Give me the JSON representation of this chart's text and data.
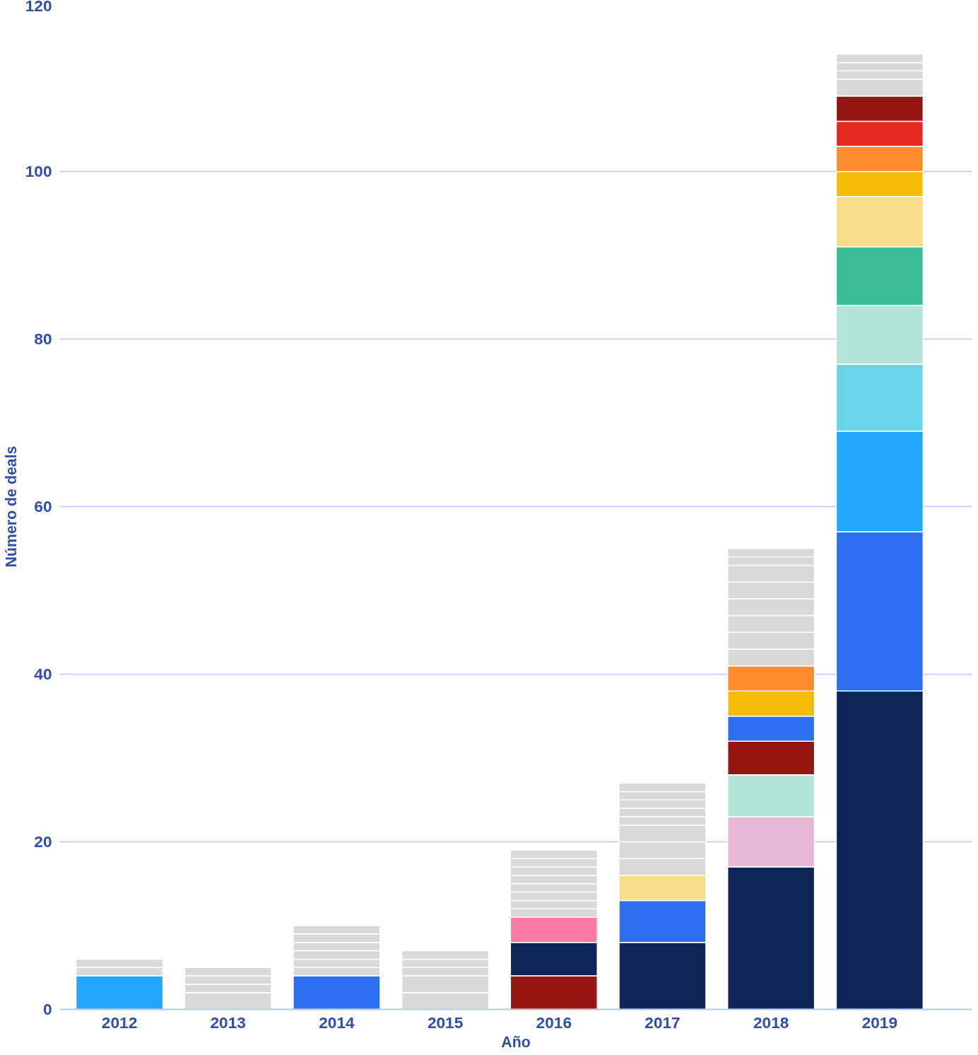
{
  "chart_data": {
    "type": "bar",
    "stacked": true,
    "xlabel": "Año",
    "ylabel": "Número de deals",
    "categories": [
      "2012",
      "2013",
      "2014",
      "2015",
      "2016",
      "2017",
      "2018",
      "2019"
    ],
    "ylim": [
      0,
      120
    ],
    "yticks": [
      0,
      20,
      40,
      60,
      80,
      100,
      120
    ],
    "grid": "y",
    "series": [
      {
        "values": [
          4,
          2,
          4,
          2,
          4,
          8,
          17,
          38
        ],
        "colors": [
          "#22a7fe",
          "#d9d9d9",
          "#2c6ff0",
          "#d9d9d9",
          "#951511",
          "#0d2557",
          "#0d2557",
          "#0d2557"
        ]
      },
      {
        "values": [
          1,
          1,
          1,
          2,
          4,
          5,
          6,
          19
        ],
        "colors": [
          "#d9d9d9",
          "#d9d9d9",
          "#d9d9d9",
          "#d9d9d9",
          "#0d2557",
          "#2c6ff0",
          "#e7b8d5",
          "#2c6ff0"
        ]
      },
      {
        "values": [
          1,
          1,
          1,
          1,
          3,
          3,
          5,
          12
        ],
        "colors": [
          "#d9d9d9",
          "#d9d9d9",
          "#d9d9d9",
          "#d9d9d9",
          "#fd7aa3",
          "#f8dc87",
          "#b2e5d5",
          "#22a7fe"
        ]
      },
      {
        "values": [
          null,
          1,
          1,
          1,
          1,
          2,
          4,
          8
        ],
        "colors": [
          null,
          "#d9d9d9",
          "#d9d9d9",
          "#d9d9d9",
          "#d9d9d9",
          "#d9d9d9",
          "#951511",
          "#68d5e8"
        ]
      },
      {
        "values": [
          null,
          null,
          1,
          1,
          1,
          2,
          3,
          7
        ],
        "colors": [
          null,
          null,
          "#d9d9d9",
          "#d9d9d9",
          "#d9d9d9",
          "#d9d9d9",
          "#2c6ff0",
          "#b2e5d5"
        ]
      },
      {
        "values": [
          null,
          null,
          1,
          null,
          1,
          2,
          3,
          7
        ],
        "colors": [
          null,
          null,
          "#d9d9d9",
          null,
          "#d9d9d9",
          "#d9d9d9",
          "#f5bd06",
          "#3bbd97"
        ]
      },
      {
        "values": [
          null,
          null,
          1,
          null,
          1,
          1,
          3,
          6
        ],
        "colors": [
          null,
          null,
          "#d9d9d9",
          null,
          "#d9d9d9",
          "#d9d9d9",
          "#fd8b2b",
          "#f8dc87"
        ]
      },
      {
        "values": [
          null,
          null,
          null,
          null,
          1,
          1,
          2,
          3
        ],
        "colors": [
          null,
          null,
          null,
          null,
          "#d9d9d9",
          "#d9d9d9",
          "#d9d9d9",
          "#f5bd06"
        ]
      },
      {
        "values": [
          null,
          null,
          null,
          null,
          1,
          1,
          2,
          3
        ],
        "colors": [
          null,
          null,
          null,
          null,
          "#d9d9d9",
          "#d9d9d9",
          "#d9d9d9",
          "#fd8b2b"
        ]
      },
      {
        "values": [
          null,
          null,
          null,
          null,
          1,
          1,
          2,
          3
        ],
        "colors": [
          null,
          null,
          null,
          null,
          "#d9d9d9",
          "#d9d9d9",
          "#d9d9d9",
          "#e52822"
        ]
      },
      {
        "values": [
          null,
          null,
          null,
          null,
          1,
          1,
          2,
          3
        ],
        "colors": [
          null,
          null,
          null,
          null,
          "#d9d9d9",
          "#d9d9d9",
          "#d9d9d9",
          "#951511"
        ]
      },
      {
        "values": [
          null,
          null,
          null,
          null,
          null,
          null,
          2,
          2
        ],
        "colors": [
          null,
          null,
          null,
          null,
          null,
          null,
          "#d9d9d9",
          "#d9d9d9"
        ]
      },
      {
        "values": [
          null,
          null,
          null,
          null,
          null,
          null,
          2,
          1
        ],
        "colors": [
          null,
          null,
          null,
          null,
          null,
          null,
          "#d9d9d9",
          "#d9d9d9"
        ]
      },
      {
        "values": [
          null,
          null,
          null,
          null,
          null,
          null,
          1,
          1
        ],
        "colors": [
          null,
          null,
          null,
          null,
          null,
          null,
          "#d9d9d9",
          "#d9d9d9"
        ]
      },
      {
        "values": [
          null,
          null,
          null,
          null,
          null,
          null,
          1,
          1
        ],
        "colors": [
          null,
          null,
          null,
          null,
          null,
          null,
          "#d9d9d9",
          "#d9d9d9"
        ]
      }
    ]
  }
}
